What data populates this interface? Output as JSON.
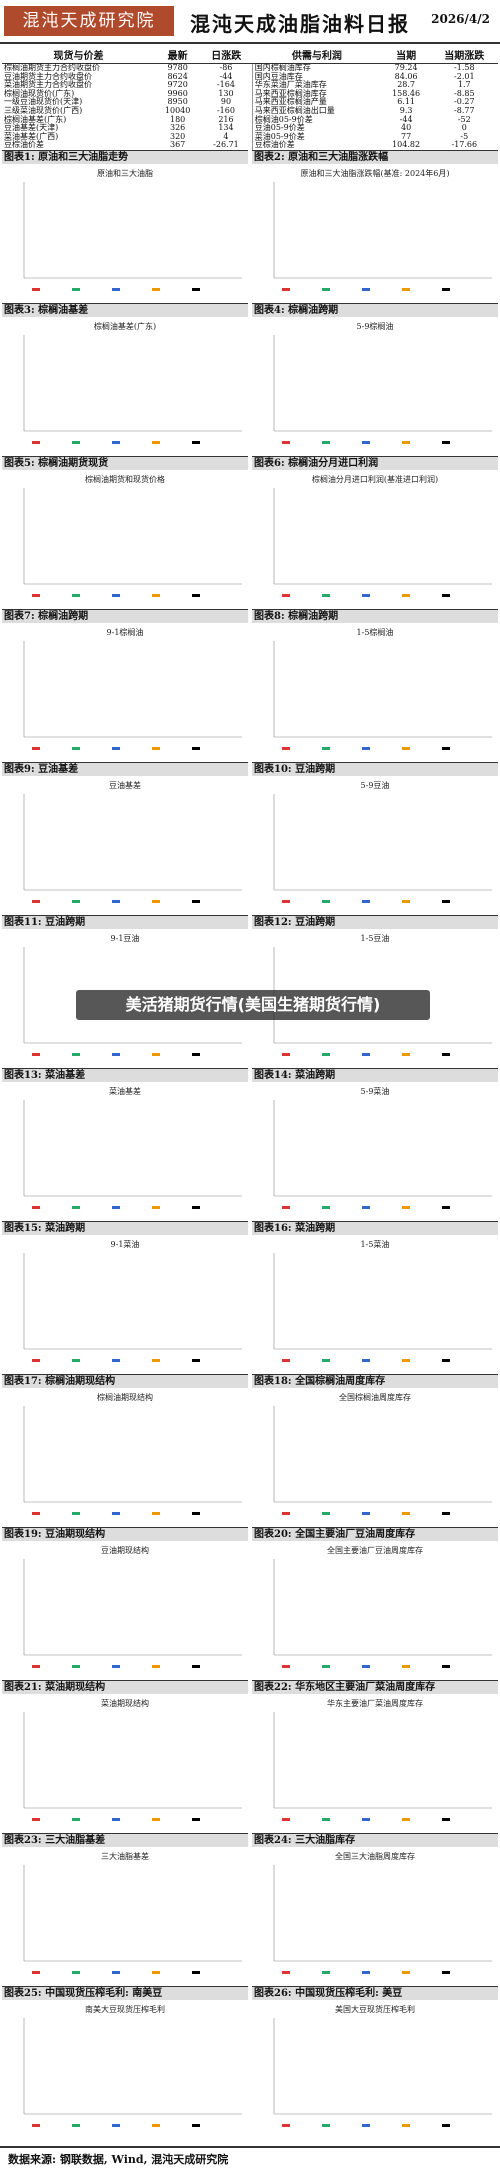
{
  "header": {
    "logo": "混沌天成研究院",
    "title": "混沌天成油脂油料日报",
    "date": "2026/4/2"
  },
  "table": {
    "headers": [
      "现货与价差",
      "最新",
      "日涨跌",
      "供需与利润",
      "当期",
      "当期涨跌"
    ],
    "rows": [
      [
        "棕榈油期货主力合约收盘价",
        9780,
        -86,
        "国内棕榈油库存",
        79.24,
        -1.58
      ],
      [
        "豆油期货主力合约收盘价",
        8624,
        -44,
        "国内豆油库存",
        84.06,
        -2.01
      ],
      [
        "菜油期货主力合约收盘价",
        9720,
        -164,
        "华东菜油厂菜油库存",
        28.7,
        1.7
      ],
      [
        "棕榈油现货价(广东)",
        9960,
        130,
        "马来西亚棕榈油库存",
        158.46,
        -8.85
      ],
      [
        "一级豆油现货价(天津)",
        8950,
        90,
        "马来西亚棕榈油产量",
        6.11,
        -0.27
      ],
      [
        "三级菜油现货价(广西)",
        10040,
        -160,
        "马来西亚棕榈油出口量",
        9.3,
        -8.77
      ],
      [
        "棕榈油基差(广东)",
        180,
        216,
        "棕榈油05-9价差",
        -44,
        -52
      ],
      [
        "豆油基差(天津)",
        326,
        134,
        "豆油05-9价差",
        40,
        0
      ],
      [
        "菜油基差(广西)",
        320,
        4,
        "菜油05-9价差",
        77,
        -5
      ],
      [
        "豆棕油价差",
        367,
        -26.71,
        "豆棕油价差",
        104.82,
        -17.66
      ]
    ]
  },
  "figures": [
    {
      "title": "图表1: 原油和三大油脂走势",
      "chart_title": "原油和三大油脂"
    },
    {
      "title": "图表2: 原油和三大油脂涨跌幅",
      "chart_title": "原油和三大油脂涨跌幅(基准: 2024年6月)"
    },
    {
      "title": "图表3: 棕榈油基差",
      "chart_title": "棕榈油基差(广东)"
    },
    {
      "title": "图表4: 棕榈油跨期",
      "chart_title": "5-9棕榈油"
    },
    {
      "title": "图表5: 棕榈油期货现货",
      "chart_title": "棕榈油期货和现货价格"
    },
    {
      "title": "图表6: 棕榈油分月进口利润",
      "chart_title": "棕榈油分月进口利润(基准进口利润)"
    },
    {
      "title": "图表7: 棕榈油跨期",
      "chart_title": "9-1棕榈油"
    },
    {
      "title": "图表8: 棕榈油跨期",
      "chart_title": "1-5棕榈油"
    },
    {
      "title": "图表9: 豆油基差",
      "chart_title": "豆油基差"
    },
    {
      "title": "图表10: 豆油跨期",
      "chart_title": "5-9豆油"
    },
    {
      "title": "图表11: 豆油跨期",
      "chart_title": "9-1豆油"
    },
    {
      "title": "图表12: 豆油跨期",
      "chart_title": "1-5豆油"
    },
    {
      "title": "图表13: 菜油基差",
      "chart_title": "菜油基差"
    },
    {
      "title": "图表14: 菜油跨期",
      "chart_title": "5-9菜油"
    },
    {
      "title": "图表15: 菜油跨期",
      "chart_title": "9-1菜油"
    },
    {
      "title": "图表16: 菜油跨期",
      "chart_title": "1-5菜油"
    },
    {
      "title": "图表17: 棕榈油期现结构",
      "chart_title": "棕榈油期现结构"
    },
    {
      "title": "图表18: 全国棕榈油周度库存",
      "chart_title": "全国棕榈油周度库存"
    },
    {
      "title": "图表19: 豆油期现结构",
      "chart_title": "豆油期现结构"
    },
    {
      "title": "图表20: 全国主要油厂豆油周度库存",
      "chart_title": "全国主要油厂豆油周度库存"
    },
    {
      "title": "图表21: 菜油期现结构",
      "chart_title": "菜油期现结构"
    },
    {
      "title": "图表22: 华东地区主要油厂菜油周度库存",
      "chart_title": "华东主要油厂菜油周度库存"
    },
    {
      "title": "图表23: 三大油脂基差",
      "chart_title": "三大油脂基差"
    },
    {
      "title": "图表24: 三大油脂库存",
      "chart_title": "全国三大油脂周度库存"
    },
    {
      "title": "图表25: 中国现货压榨毛利: 南美豆",
      "chart_title": "南美大豆现货压榨毛利"
    },
    {
      "title": "图表26: 中国现货压榨毛利: 美豆",
      "chart_title": "美国大豆现货压榨毛利"
    }
  ],
  "overlay": "美活猪期货行情(美国生猪期货行情)",
  "footer": "数据来源: 钢联数据, Wind, 混沌天成研究院"
}
